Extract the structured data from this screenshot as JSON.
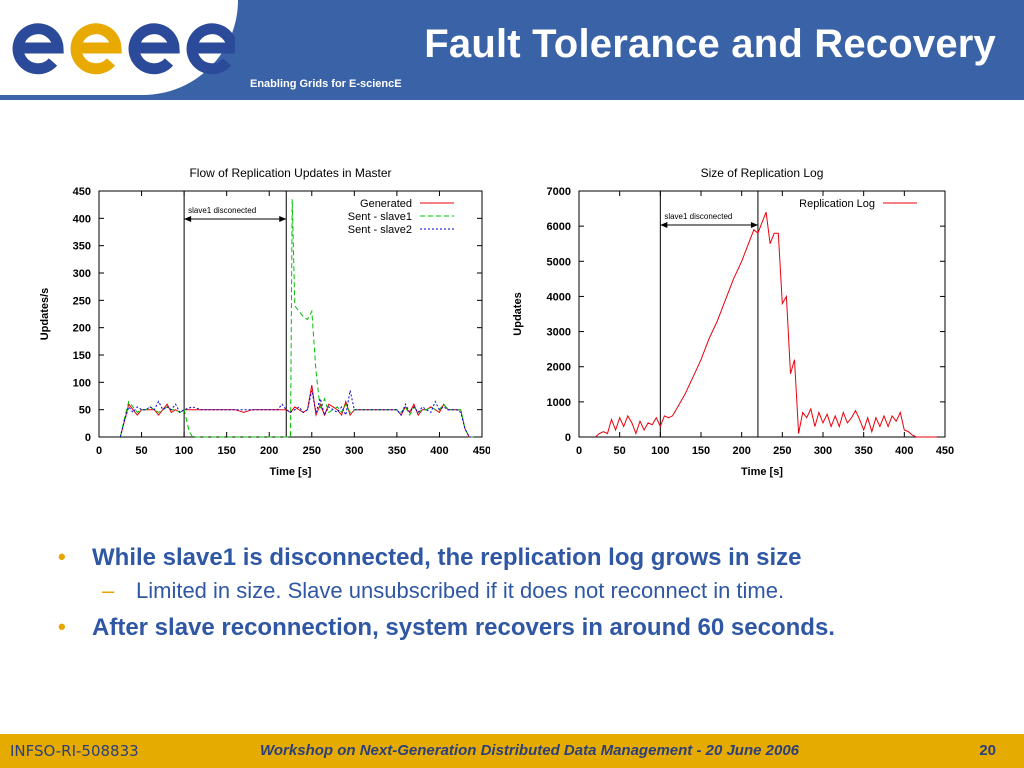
{
  "header": {
    "title": "Fault Tolerance and Recovery",
    "subtitle": "Enabling Grids for E-sciencE",
    "logo_text": "egee",
    "background": "#3a63a7"
  },
  "chart_data": [
    {
      "type": "line",
      "title": "Flow of Replication Updates in Master",
      "xlabel": "Time [s]",
      "ylabel": "Updates/s",
      "xlim": [
        0,
        450
      ],
      "ylim": [
        0,
        450
      ],
      "xticks": [
        0,
        50,
        100,
        150,
        200,
        250,
        300,
        350,
        400,
        450
      ],
      "yticks": [
        0,
        50,
        100,
        150,
        200,
        250,
        300,
        350,
        400,
        450
      ],
      "grid": false,
      "legend_position": "top-right",
      "annotation": {
        "text": "slave1 disconected",
        "x_start": 100,
        "x_end": 220
      },
      "vlines": [
        100,
        220
      ],
      "series": [
        {
          "name": "Generated",
          "color": "#e8000b",
          "dash": "solid",
          "x": [
            25,
            30,
            35,
            40,
            45,
            50,
            55,
            60,
            65,
            70,
            75,
            80,
            85,
            90,
            95,
            100,
            110,
            120,
            130,
            140,
            150,
            160,
            170,
            180,
            190,
            200,
            210,
            220,
            225,
            230,
            235,
            240,
            245,
            250,
            255,
            260,
            265,
            270,
            275,
            280,
            285,
            290,
            295,
            300,
            310,
            320,
            330,
            340,
            350,
            355,
            360,
            365,
            370,
            375,
            380,
            385,
            390,
            395,
            400,
            405,
            410,
            415,
            420,
            425,
            430,
            435,
            440
          ],
          "y": [
            0,
            30,
            60,
            50,
            40,
            50,
            50,
            50,
            50,
            40,
            50,
            60,
            45,
            50,
            45,
            50,
            50,
            50,
            50,
            50,
            50,
            50,
            45,
            50,
            50,
            50,
            50,
            50,
            45,
            55,
            50,
            45,
            50,
            95,
            40,
            60,
            40,
            60,
            55,
            50,
            40,
            65,
            40,
            50,
            50,
            50,
            50,
            50,
            50,
            40,
            55,
            45,
            60,
            40,
            50,
            50,
            55,
            50,
            45,
            60,
            50,
            50,
            50,
            50,
            15,
            0,
            0
          ]
        },
        {
          "name": "Sent - slave1",
          "color": "#00c000",
          "dash": "5,3",
          "x": [
            25,
            30,
            35,
            40,
            45,
            50,
            55,
            60,
            65,
            70,
            75,
            80,
            85,
            90,
            95,
            100,
            103,
            106,
            110,
            225,
            227,
            230,
            235,
            240,
            245,
            250,
            255,
            260,
            265,
            270,
            275,
            280,
            285,
            290,
            295,
            300,
            310,
            320,
            330,
            340,
            350,
            355,
            360,
            365,
            370,
            375,
            380,
            385,
            390,
            395,
            400,
            405,
            410,
            415,
            420,
            425,
            430,
            435,
            440
          ],
          "y": [
            0,
            35,
            65,
            55,
            45,
            50,
            50,
            55,
            50,
            45,
            50,
            55,
            50,
            50,
            45,
            50,
            30,
            10,
            0,
            0,
            435,
            240,
            230,
            220,
            215,
            230,
            120,
            50,
            70,
            45,
            50,
            55,
            45,
            60,
            45,
            50,
            50,
            50,
            50,
            50,
            50,
            45,
            55,
            40,
            55,
            45,
            50,
            50,
            55,
            50,
            50,
            60,
            50,
            50,
            50,
            50,
            15,
            0,
            0
          ]
        },
        {
          "name": "Sent - slave2",
          "color": "#0000e0",
          "dash": "2,2",
          "x": [
            25,
            30,
            35,
            40,
            45,
            50,
            55,
            60,
            65,
            70,
            75,
            80,
            85,
            90,
            95,
            100,
            110,
            120,
            130,
            140,
            150,
            160,
            170,
            180,
            190,
            200,
            210,
            215,
            220,
            225,
            230,
            235,
            240,
            245,
            250,
            255,
            260,
            265,
            270,
            275,
            280,
            285,
            290,
            295,
            300,
            310,
            320,
            330,
            340,
            350,
            355,
            360,
            365,
            370,
            375,
            380,
            385,
            390,
            395,
            400,
            405,
            410,
            415,
            420,
            425,
            430,
            435,
            440
          ],
          "y": [
            0,
            30,
            55,
            45,
            55,
            50,
            50,
            55,
            50,
            65,
            50,
            55,
            50,
            60,
            45,
            50,
            55,
            50,
            50,
            50,
            50,
            50,
            50,
            50,
            50,
            50,
            50,
            60,
            50,
            45,
            50,
            55,
            45,
            50,
            85,
            45,
            70,
            40,
            55,
            50,
            45,
            55,
            40,
            85,
            50,
            50,
            50,
            50,
            50,
            50,
            40,
            60,
            45,
            55,
            45,
            55,
            50,
            45,
            65,
            50,
            55,
            50,
            50,
            50,
            45,
            15,
            0,
            0
          ]
        }
      ]
    },
    {
      "type": "line",
      "title": "Size of Replication Log",
      "xlabel": "Time [s]",
      "ylabel": "Updates",
      "xlim": [
        0,
        450
      ],
      "ylim": [
        0,
        7000
      ],
      "xticks": [
        0,
        50,
        100,
        150,
        200,
        250,
        300,
        350,
        400,
        450
      ],
      "yticks": [
        0,
        1000,
        2000,
        3000,
        4000,
        5000,
        6000,
        7000
      ],
      "grid": false,
      "legend_position": "top-right",
      "annotation": {
        "text": "slave1 disconected",
        "x_start": 100,
        "x_end": 220
      },
      "vlines": [
        100,
        220
      ],
      "series": [
        {
          "name": "Replication Log",
          "color": "#e8000b",
          "dash": "solid",
          "x": [
            20,
            25,
            30,
            35,
            40,
            45,
            50,
            55,
            60,
            65,
            70,
            75,
            80,
            85,
            90,
            95,
            100,
            105,
            110,
            115,
            120,
            130,
            140,
            150,
            160,
            170,
            180,
            190,
            200,
            210,
            215,
            220,
            225,
            230,
            235,
            240,
            245,
            250,
            255,
            260,
            265,
            270,
            275,
            280,
            285,
            290,
            295,
            300,
            305,
            310,
            315,
            320,
            325,
            330,
            335,
            340,
            345,
            350,
            355,
            360,
            365,
            370,
            375,
            380,
            385,
            390,
            395,
            400,
            405,
            410,
            415,
            420,
            425,
            430,
            435,
            440
          ],
          "y": [
            0,
            100,
            150,
            100,
            500,
            200,
            550,
            300,
            600,
            400,
            100,
            450,
            200,
            400,
            350,
            550,
            300,
            600,
            550,
            600,
            800,
            1200,
            1700,
            2200,
            2800,
            3300,
            3900,
            4500,
            5000,
            5600,
            5900,
            5800,
            6100,
            6400,
            5500,
            5800,
            5800,
            3800,
            4000,
            1800,
            2200,
            100,
            700,
            550,
            800,
            300,
            700,
            400,
            650,
            300,
            600,
            300,
            700,
            400,
            550,
            750,
            500,
            200,
            550,
            150,
            550,
            300,
            600,
            300,
            600,
            450,
            700,
            200,
            150,
            50,
            0,
            0,
            0,
            0,
            0,
            0
          ]
        }
      ]
    }
  ],
  "bullets": [
    {
      "level": 1,
      "text": "While slave1 is disconnected, the replication log grows in size"
    },
    {
      "level": 2,
      "text": "Limited in size. Slave unsubscribed if it does not reconnect in time."
    },
    {
      "level": 1,
      "text": "After slave reconnection, system recovers in around 60 seconds."
    }
  ],
  "footer": {
    "left": "INFSO-RI-508833",
    "center": "Workshop on Next-Generation Distributed Data Management  - 20 June 2006",
    "page": "20",
    "background": "#e5ab00"
  }
}
